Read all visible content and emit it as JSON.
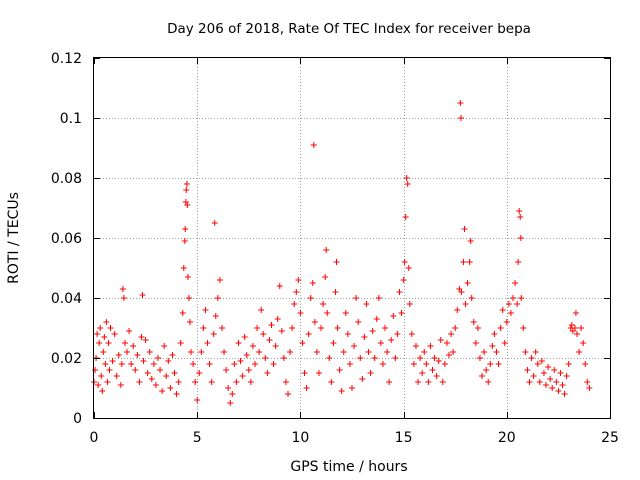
{
  "chart_data": {
    "type": "scatter",
    "title": "Day 206 of 2018, Rate Of TEC Index for receiver bepa",
    "xlabel": "GPS time / hours",
    "ylabel": "ROTI / TECUs",
    "xlim": [
      0,
      25
    ],
    "ylim": [
      0,
      0.12
    ],
    "xticks": [
      0,
      5,
      10,
      15,
      20,
      25
    ],
    "xtick_labels": [
      "0",
      "5",
      "10",
      "15",
      "20",
      "25"
    ],
    "yticks": [
      0,
      0.02,
      0.04,
      0.06,
      0.08,
      0.1,
      0.12
    ],
    "ytick_labels": [
      "0",
      "0.02",
      "0.04",
      "0.06",
      "0.08",
      "0.1",
      "0.12"
    ],
    "grid": true,
    "marker": "plus",
    "color": "#ff0000",
    "series": [
      {
        "name": "ROTI",
        "points": [
          [
            0.0,
            0.012
          ],
          [
            0.05,
            0.016
          ],
          [
            0.1,
            0.02
          ],
          [
            0.15,
            0.028
          ],
          [
            0.2,
            0.011
          ],
          [
            0.25,
            0.025
          ],
          [
            0.3,
            0.03
          ],
          [
            0.35,
            0.014
          ],
          [
            0.4,
            0.009
          ],
          [
            0.45,
            0.022
          ],
          [
            0.5,
            0.027
          ],
          [
            0.55,
            0.018
          ],
          [
            0.6,
            0.032
          ],
          [
            0.65,
            0.012
          ],
          [
            0.7,
            0.025
          ],
          [
            0.75,
            0.016
          ],
          [
            0.8,
            0.03
          ],
          [
            0.9,
            0.019
          ],
          [
            1.0,
            0.028
          ],
          [
            1.1,
            0.014
          ],
          [
            1.2,
            0.021
          ],
          [
            1.3,
            0.011
          ],
          [
            1.35,
            0.018
          ],
          [
            1.4,
            0.043
          ],
          [
            1.45,
            0.04
          ],
          [
            1.5,
            0.025
          ],
          [
            1.6,
            0.022
          ],
          [
            1.7,
            0.029
          ],
          [
            1.8,
            0.018
          ],
          [
            1.9,
            0.024
          ],
          [
            2.0,
            0.016
          ],
          [
            2.1,
            0.021
          ],
          [
            2.2,
            0.012
          ],
          [
            2.3,
            0.027
          ],
          [
            2.35,
            0.041
          ],
          [
            2.4,
            0.019
          ],
          [
            2.5,
            0.026
          ],
          [
            2.6,
            0.015
          ],
          [
            2.7,
            0.022
          ],
          [
            2.8,
            0.013
          ],
          [
            2.9,
            0.018
          ],
          [
            3.0,
            0.011
          ],
          [
            3.1,
            0.02
          ],
          [
            3.2,
            0.016
          ],
          [
            3.3,
            0.009
          ],
          [
            3.4,
            0.024
          ],
          [
            3.5,
            0.014
          ],
          [
            3.6,
            0.019
          ],
          [
            3.7,
            0.01
          ],
          [
            3.8,
            0.021
          ],
          [
            3.9,
            0.015
          ],
          [
            4.0,
            0.008
          ],
          [
            4.1,
            0.012
          ],
          [
            4.2,
            0.025
          ],
          [
            4.3,
            0.035
          ],
          [
            4.35,
            0.05
          ],
          [
            4.4,
            0.059
          ],
          [
            4.42,
            0.063
          ],
          [
            4.45,
            0.072
          ],
          [
            4.47,
            0.076
          ],
          [
            4.5,
            0.078
          ],
          [
            4.52,
            0.071
          ],
          [
            4.55,
            0.047
          ],
          [
            4.6,
            0.04
          ],
          [
            4.65,
            0.032
          ],
          [
            4.7,
            0.022
          ],
          [
            4.8,
            0.018
          ],
          [
            4.9,
            0.012
          ],
          [
            5.0,
            0.006
          ],
          [
            5.1,
            0.015
          ],
          [
            5.2,
            0.022
          ],
          [
            5.3,
            0.03
          ],
          [
            5.4,
            0.036
          ],
          [
            5.5,
            0.025
          ],
          [
            5.6,
            0.018
          ],
          [
            5.7,
            0.012
          ],
          [
            5.8,
            0.028
          ],
          [
            5.85,
            0.065
          ],
          [
            5.9,
            0.034
          ],
          [
            6.0,
            0.04
          ],
          [
            6.1,
            0.046
          ],
          [
            6.2,
            0.03
          ],
          [
            6.3,
            0.022
          ],
          [
            6.4,
            0.016
          ],
          [
            6.5,
            0.01
          ],
          [
            6.6,
            0.005
          ],
          [
            6.7,
            0.008
          ],
          [
            6.8,
            0.018
          ],
          [
            6.9,
            0.012
          ],
          [
            7.0,
            0.025
          ],
          [
            7.1,
            0.019
          ],
          [
            7.2,
            0.014
          ],
          [
            7.3,
            0.027
          ],
          [
            7.4,
            0.021
          ],
          [
            7.5,
            0.016
          ],
          [
            7.6,
            0.012
          ],
          [
            7.7,
            0.024
          ],
          [
            7.8,
            0.018
          ],
          [
            7.9,
            0.03
          ],
          [
            8.0,
            0.022
          ],
          [
            8.1,
            0.036
          ],
          [
            8.2,
            0.028
          ],
          [
            8.3,
            0.02
          ],
          [
            8.4,
            0.015
          ],
          [
            8.5,
            0.026
          ],
          [
            8.6,
            0.031
          ],
          [
            8.7,
            0.018
          ],
          [
            8.8,
            0.024
          ],
          [
            8.9,
            0.033
          ],
          [
            9.0,
            0.044
          ],
          [
            9.1,
            0.029
          ],
          [
            9.2,
            0.02
          ],
          [
            9.3,
            0.012
          ],
          [
            9.4,
            0.008
          ],
          [
            9.5,
            0.022
          ],
          [
            9.6,
            0.03
          ],
          [
            9.7,
            0.038
          ],
          [
            9.8,
            0.042
          ],
          [
            9.9,
            0.046
          ],
          [
            10.0,
            0.035
          ],
          [
            10.1,
            0.025
          ],
          [
            10.2,
            0.015
          ],
          [
            10.3,
            0.01
          ],
          [
            10.4,
            0.028
          ],
          [
            10.5,
            0.04
          ],
          [
            10.6,
            0.045
          ],
          [
            10.65,
            0.091
          ],
          [
            10.7,
            0.032
          ],
          [
            10.8,
            0.022
          ],
          [
            10.9,
            0.015
          ],
          [
            11.0,
            0.03
          ],
          [
            11.1,
            0.038
          ],
          [
            11.2,
            0.047
          ],
          [
            11.25,
            0.056
          ],
          [
            11.3,
            0.035
          ],
          [
            11.4,
            0.02
          ],
          [
            11.5,
            0.012
          ],
          [
            11.6,
            0.025
          ],
          [
            11.7,
            0.042
          ],
          [
            11.75,
            0.052
          ],
          [
            11.8,
            0.03
          ],
          [
            11.9,
            0.016
          ],
          [
            12.0,
            0.009
          ],
          [
            12.1,
            0.022
          ],
          [
            12.2,
            0.035
          ],
          [
            12.3,
            0.028
          ],
          [
            12.4,
            0.018
          ],
          [
            12.5,
            0.01
          ],
          [
            12.6,
            0.024
          ],
          [
            12.7,
            0.04
          ],
          [
            12.8,
            0.032
          ],
          [
            12.9,
            0.02
          ],
          [
            13.0,
            0.013
          ],
          [
            13.1,
            0.027
          ],
          [
            13.2,
            0.038
          ],
          [
            13.3,
            0.022
          ],
          [
            13.4,
            0.015
          ],
          [
            13.5,
            0.029
          ],
          [
            13.6,
            0.02
          ],
          [
            13.7,
            0.033
          ],
          [
            13.8,
            0.04
          ],
          [
            13.9,
            0.025
          ],
          [
            14.0,
            0.018
          ],
          [
            14.1,
            0.03
          ],
          [
            14.2,
            0.022
          ],
          [
            14.3,
            0.012
          ],
          [
            14.4,
            0.026
          ],
          [
            14.5,
            0.034
          ],
          [
            14.6,
            0.02
          ],
          [
            14.7,
            0.028
          ],
          [
            14.8,
            0.042
          ],
          [
            14.9,
            0.035
          ],
          [
            15.0,
            0.046
          ],
          [
            15.05,
            0.052
          ],
          [
            15.1,
            0.067
          ],
          [
            15.15,
            0.08
          ],
          [
            15.2,
            0.078
          ],
          [
            15.25,
            0.05
          ],
          [
            15.3,
            0.038
          ],
          [
            15.4,
            0.028
          ],
          [
            15.5,
            0.018
          ],
          [
            15.6,
            0.024
          ],
          [
            15.7,
            0.012
          ],
          [
            15.8,
            0.02
          ],
          [
            15.9,
            0.015
          ],
          [
            16.0,
            0.022
          ],
          [
            16.1,
            0.018
          ],
          [
            16.2,
            0.012
          ],
          [
            16.3,
            0.024
          ],
          [
            16.4,
            0.016
          ],
          [
            16.5,
            0.02
          ],
          [
            16.6,
            0.014
          ],
          [
            16.7,
            0.019
          ],
          [
            16.8,
            0.026
          ],
          [
            16.9,
            0.012
          ],
          [
            17.0,
            0.018
          ],
          [
            17.1,
            0.025
          ],
          [
            17.2,
            0.021
          ],
          [
            17.3,
            0.028
          ],
          [
            17.4,
            0.022
          ],
          [
            17.5,
            0.03
          ],
          [
            17.6,
            0.036
          ],
          [
            17.7,
            0.043
          ],
          [
            17.75,
            0.105
          ],
          [
            17.78,
            0.1
          ],
          [
            17.8,
            0.042
          ],
          [
            17.9,
            0.052
          ],
          [
            17.95,
            0.063
          ],
          [
            18.0,
            0.038
          ],
          [
            18.1,
            0.045
          ],
          [
            18.2,
            0.052
          ],
          [
            18.25,
            0.059
          ],
          [
            18.3,
            0.04
          ],
          [
            18.4,
            0.032
          ],
          [
            18.5,
            0.025
          ],
          [
            18.6,
            0.03
          ],
          [
            18.7,
            0.02
          ],
          [
            18.8,
            0.014
          ],
          [
            18.9,
            0.022
          ],
          [
            19.0,
            0.016
          ],
          [
            19.1,
            0.012
          ],
          [
            19.2,
            0.018
          ],
          [
            19.3,
            0.024
          ],
          [
            19.4,
            0.028
          ],
          [
            19.5,
            0.022
          ],
          [
            19.6,
            0.018
          ],
          [
            19.7,
            0.03
          ],
          [
            19.8,
            0.036
          ],
          [
            19.9,
            0.025
          ],
          [
            20.0,
            0.032
          ],
          [
            20.1,
            0.038
          ],
          [
            20.2,
            0.035
          ],
          [
            20.3,
            0.04
          ],
          [
            20.4,
            0.045
          ],
          [
            20.5,
            0.038
          ],
          [
            20.55,
            0.052
          ],
          [
            20.6,
            0.069
          ],
          [
            20.65,
            0.067
          ],
          [
            20.68,
            0.06
          ],
          [
            20.7,
            0.04
          ],
          [
            20.8,
            0.03
          ],
          [
            20.9,
            0.022
          ],
          [
            21.0,
            0.016
          ],
          [
            21.1,
            0.012
          ],
          [
            21.2,
            0.02
          ],
          [
            21.3,
            0.014
          ],
          [
            21.4,
            0.022
          ],
          [
            21.5,
            0.018
          ],
          [
            21.6,
            0.012
          ],
          [
            21.7,
            0.019
          ],
          [
            21.8,
            0.015
          ],
          [
            21.9,
            0.011
          ],
          [
            22.0,
            0.017
          ],
          [
            22.1,
            0.013
          ],
          [
            22.2,
            0.01
          ],
          [
            22.3,
            0.016
          ],
          [
            22.4,
            0.012
          ],
          [
            22.5,
            0.009
          ],
          [
            22.6,
            0.015
          ],
          [
            22.7,
            0.011
          ],
          [
            22.8,
            0.008
          ],
          [
            22.9,
            0.014
          ],
          [
            23.0,
            0.018
          ],
          [
            23.1,
            0.03
          ],
          [
            23.15,
            0.031
          ],
          [
            23.2,
            0.029
          ],
          [
            23.3,
            0.03
          ],
          [
            23.35,
            0.035
          ],
          [
            23.4,
            0.028
          ],
          [
            23.5,
            0.022
          ],
          [
            23.6,
            0.03
          ],
          [
            23.7,
            0.025
          ],
          [
            23.8,
            0.018
          ],
          [
            23.9,
            0.012
          ],
          [
            24.0,
            0.01
          ]
        ]
      }
    ]
  }
}
